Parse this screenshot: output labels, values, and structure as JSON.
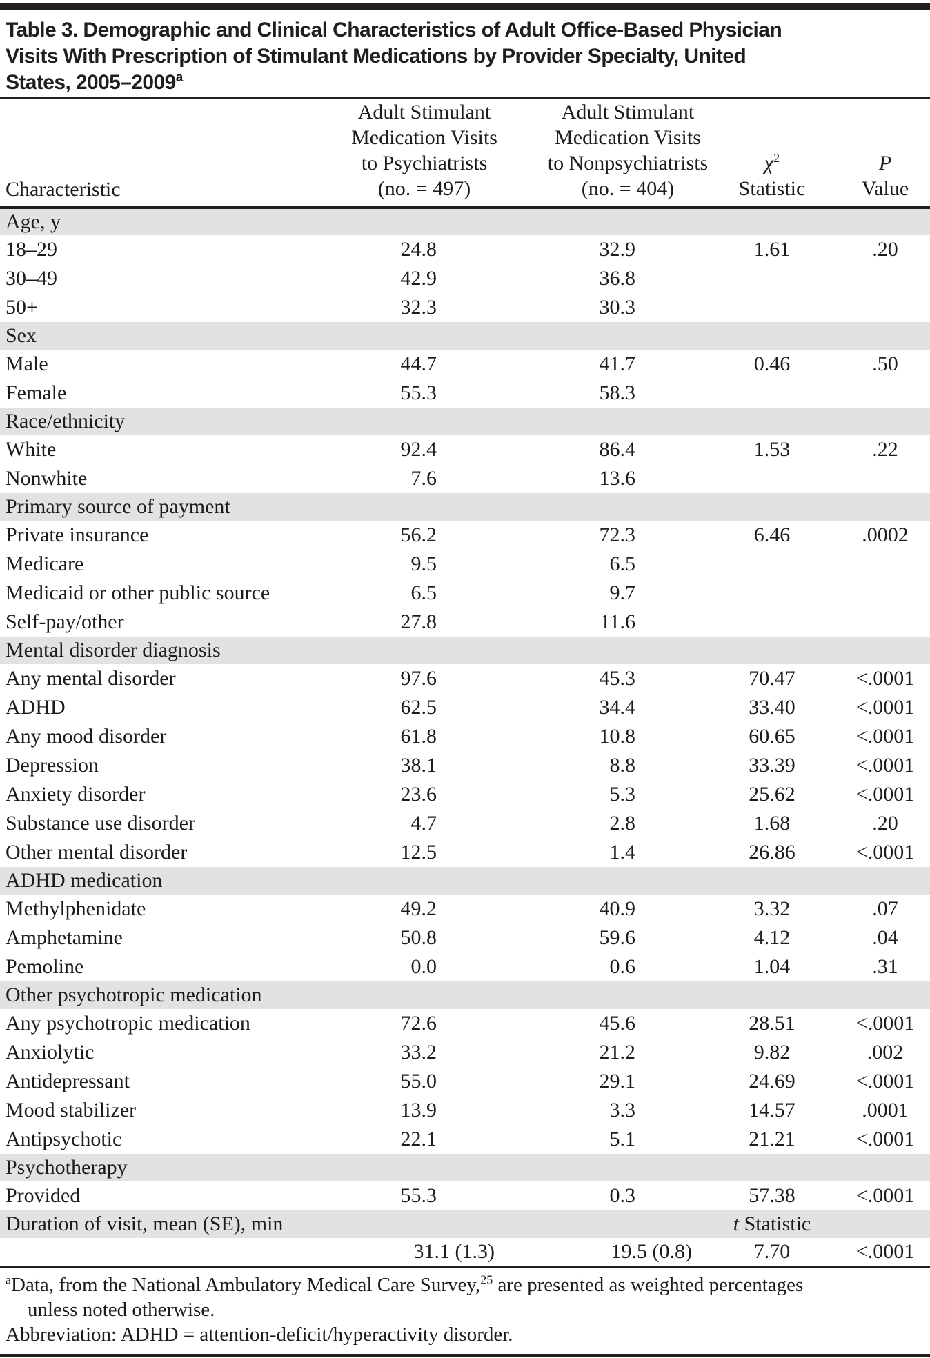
{
  "title": {
    "lines": [
      "Table 3. Demographic and Clinical Characteristics of Adult Office-Based Physician",
      "Visits With Prescription of Stimulant Medications by Provider Specialty, United",
      "States, 2005–2009"
    ],
    "superscript": "a"
  },
  "table": {
    "columns": {
      "characteristic": "Characteristic",
      "psychiatrists": [
        "Adult Stimulant",
        "Medication Visits",
        "to Psychiatrists",
        "(no. = 497)"
      ],
      "nonpsychiatrists": [
        "Adult Stimulant",
        "Medication Visits",
        "to Nonpsychiatrists",
        "(no. = 404)"
      ],
      "chi": {
        "symbol": "χ",
        "sup": "2",
        "label": "Statistic"
      },
      "p": {
        "symbol": "P",
        "label": "Value"
      }
    },
    "sections": [
      {
        "header": "Age, y",
        "rows": [
          {
            "label": "18–29",
            "psychiatrists": "24.8",
            "nonpsychiatrists": "32.9",
            "statistic": "1.61",
            "p": ".20"
          },
          {
            "label": "30–49",
            "psychiatrists": "42.9",
            "nonpsychiatrists": "36.8",
            "statistic": "",
            "p": ""
          },
          {
            "label": "50+",
            "psychiatrists": "32.3",
            "nonpsychiatrists": "30.3",
            "statistic": "",
            "p": ""
          }
        ]
      },
      {
        "header": "Sex",
        "rows": [
          {
            "label": "Male",
            "psychiatrists": "44.7",
            "nonpsychiatrists": "41.7",
            "statistic": "0.46",
            "p": ".50"
          },
          {
            "label": "Female",
            "psychiatrists": "55.3",
            "nonpsychiatrists": "58.3",
            "statistic": "",
            "p": ""
          }
        ]
      },
      {
        "header": "Race/ethnicity",
        "rows": [
          {
            "label": "White",
            "psychiatrists": "92.4",
            "nonpsychiatrists": "86.4",
            "statistic": "1.53",
            "p": ".22"
          },
          {
            "label": "Nonwhite",
            "psychiatrists": "7.6",
            "nonpsychiatrists": "13.6",
            "statistic": "",
            "p": ""
          }
        ]
      },
      {
        "header": "Primary source of payment",
        "rows": [
          {
            "label": "Private insurance",
            "psychiatrists": "56.2",
            "nonpsychiatrists": "72.3",
            "statistic": "6.46",
            "p": ".0002"
          },
          {
            "label": "Medicare",
            "psychiatrists": "9.5",
            "nonpsychiatrists": "6.5",
            "statistic": "",
            "p": ""
          },
          {
            "label": "Medicaid or other public source",
            "psychiatrists": "6.5",
            "nonpsychiatrists": "9.7",
            "statistic": "",
            "p": ""
          },
          {
            "label": "Self-pay/other",
            "psychiatrists": "27.8",
            "nonpsychiatrists": "11.6",
            "statistic": "",
            "p": ""
          }
        ]
      },
      {
        "header": "Mental disorder diagnosis",
        "rows": [
          {
            "label": "Any mental disorder",
            "psychiatrists": "97.6",
            "nonpsychiatrists": "45.3",
            "statistic": "70.47",
            "p": "<.0001"
          },
          {
            "label": "ADHD",
            "psychiatrists": "62.5",
            "nonpsychiatrists": "34.4",
            "statistic": "33.40",
            "p": "<.0001"
          },
          {
            "label": "Any mood disorder",
            "psychiatrists": "61.8",
            "nonpsychiatrists": "10.8",
            "statistic": "60.65",
            "p": "<.0001"
          },
          {
            "label": "Depression",
            "psychiatrists": "38.1",
            "nonpsychiatrists": "8.8",
            "statistic": "33.39",
            "p": "<.0001"
          },
          {
            "label": "Anxiety disorder",
            "psychiatrists": "23.6",
            "nonpsychiatrists": "5.3",
            "statistic": "25.62",
            "p": "<.0001"
          },
          {
            "label": "Substance use disorder",
            "psychiatrists": "4.7",
            "nonpsychiatrists": "2.8",
            "statistic": "1.68",
            "p": ".20"
          },
          {
            "label": "Other mental disorder",
            "psychiatrists": "12.5",
            "nonpsychiatrists": "1.4",
            "statistic": "26.86",
            "p": "<.0001"
          }
        ]
      },
      {
        "header": "ADHD medication",
        "rows": [
          {
            "label": "Methylphenidate",
            "psychiatrists": "49.2",
            "nonpsychiatrists": "40.9",
            "statistic": "3.32",
            "p": ".07"
          },
          {
            "label": "Amphetamine",
            "psychiatrists": "50.8",
            "nonpsychiatrists": "59.6",
            "statistic": "4.12",
            "p": ".04"
          },
          {
            "label": "Pemoline",
            "psychiatrists": "0.0",
            "nonpsychiatrists": "0.6",
            "statistic": "1.04",
            "p": ".31"
          }
        ]
      },
      {
        "header": "Other psychotropic medication",
        "rows": [
          {
            "label": "Any psychotropic medication",
            "psychiatrists": "72.6",
            "nonpsychiatrists": "45.6",
            "statistic": "28.51",
            "p": "<.0001"
          },
          {
            "label": "Anxiolytic",
            "psychiatrists": "33.2",
            "nonpsychiatrists": "21.2",
            "statistic": "9.82",
            "p": ".002"
          },
          {
            "label": "Antidepressant",
            "psychiatrists": "55.0",
            "nonpsychiatrists": "29.1",
            "statistic": "24.69",
            "p": "<.0001"
          },
          {
            "label": "Mood stabilizer",
            "psychiatrists": "13.9",
            "nonpsychiatrists": "3.3",
            "statistic": "14.57",
            "p": ".0001"
          },
          {
            "label": "Antipsychotic",
            "psychiatrists": "22.1",
            "nonpsychiatrists": "5.1",
            "statistic": "21.21",
            "p": "<.0001"
          }
        ]
      },
      {
        "header": "Psychotherapy",
        "rows": [
          {
            "label": "Provided",
            "psychiatrists": "55.3",
            "nonpsychiatrists": "0.3",
            "statistic": "57.38",
            "p": "<.0001"
          }
        ]
      },
      {
        "header": "Duration of visit, mean (SE), min",
        "stat_note": {
          "italic": "t",
          "text": "Statistic"
        },
        "rows": [
          {
            "label": "",
            "psychiatrists": "31.1 (1.3)",
            "nonpsychiatrists": "19.5 (0.8)",
            "statistic": "7.70",
            "p": "<.0001",
            "se": true
          }
        ]
      }
    ]
  },
  "footnotes": {
    "marker": "a",
    "line1": "Data, from the National Ambulatory Medical Care Survey,",
    "ref": "25",
    "line1b": " are presented as weighted percentages",
    "line2": "unless noted otherwise.",
    "abbreviation": "Abbreviation: ADHD = attention-deficit/hyperactivity disorder."
  }
}
